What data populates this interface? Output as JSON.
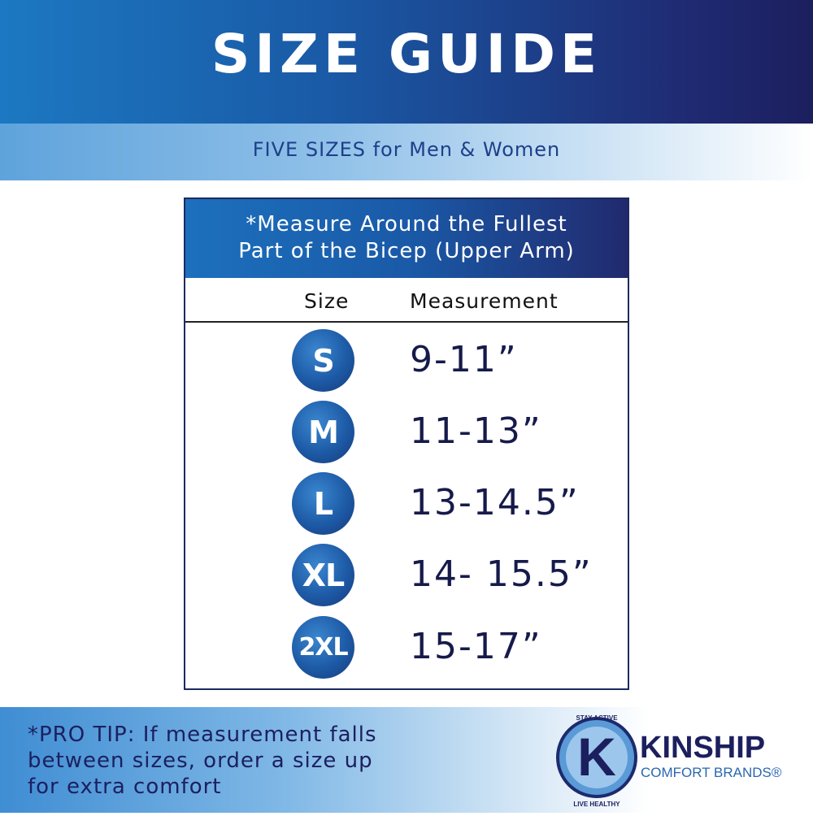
{
  "title": "SIZE GUIDE",
  "subtitle": "FIVE SIZES for Men & Women",
  "table": {
    "header_line1": "*Measure Around the Fullest",
    "header_line2": "Part of the Bicep (Upper Arm)",
    "col_size": "Size",
    "col_measurement": "Measurement",
    "rows": [
      {
        "size": "S",
        "measurement": "9-11”"
      },
      {
        "size": "M",
        "measurement": "11-13”"
      },
      {
        "size": "L",
        "measurement": "13-14.5”"
      },
      {
        "size": "XL",
        "measurement": "14- 15.5”"
      },
      {
        "size": "2XL",
        "measurement": "15-17”"
      }
    ]
  },
  "tip": "*PRO TIP: If measurement falls between sizes, order a size up for extra comfort",
  "logo": {
    "brand": "KINSHIP",
    "tagline": "COMFORT BRANDS",
    "badge_top": "STAY ACTIVE",
    "badge_bottom": "LIVE HEALTHY",
    "mark": "K"
  },
  "colors": {
    "navy": "#1c1f5e",
    "blue": "#1c78c2",
    "text": "#161a4a"
  }
}
